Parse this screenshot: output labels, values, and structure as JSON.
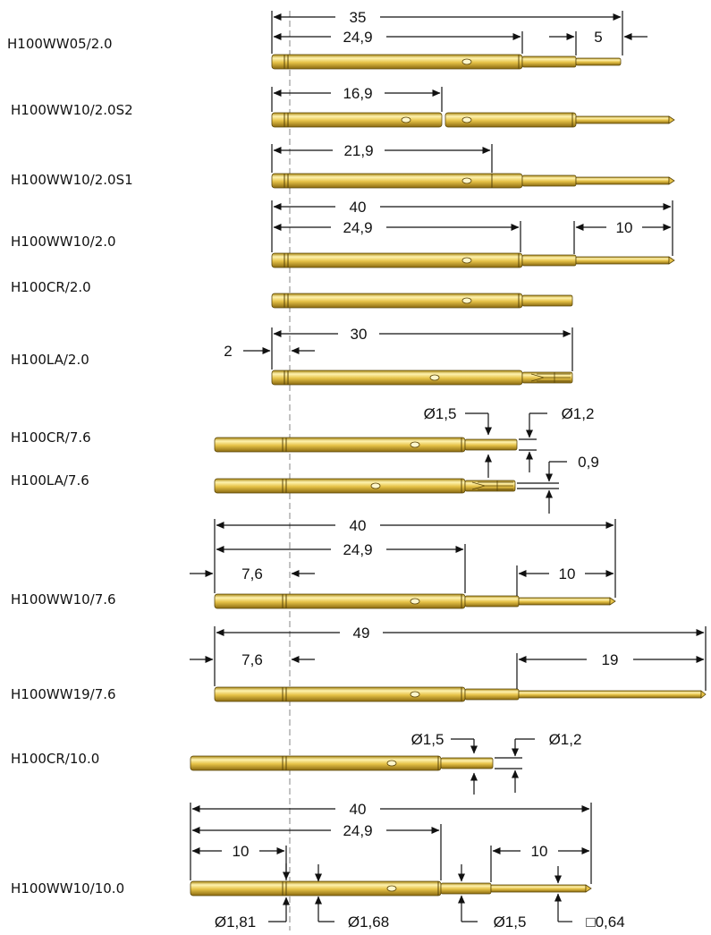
{
  "labels": {
    "ww05_20": "H100WW05/2.0",
    "ww10_20s2": "H100WW10/2.0S2",
    "ww10_20s1": "H100WW10/2.0S1",
    "ww10_20": "H100WW10/2.0",
    "cr_20": "H100CR/2.0",
    "la_20": "H100LA/2.0",
    "cr_76": "H100CR/7.6",
    "la_76": "H100LA/7.6",
    "ww10_76": "H100WW10/7.6",
    "ww19_76": "H100WW19/7.6",
    "cr_100": "H100CR/10.0",
    "ww10_100": "H100WW10/10.0"
  },
  "dims": {
    "d35": "35",
    "d249a": "24,9",
    "d5": "5",
    "d169": "16,9",
    "d219": "21,9",
    "d40a": "40",
    "d249b": "24,9",
    "d10a": "10",
    "d2": "2",
    "d30": "30",
    "phi15a": "Ø1,5",
    "phi12a": "Ø1,2",
    "d09": "0,9",
    "d40b": "40",
    "d249c": "24,9",
    "d76a": "7,6",
    "d10b": "10",
    "d49": "49",
    "d76b": "7,6",
    "d19": "19",
    "phi15b": "Ø1,5",
    "phi12b": "Ø1,2",
    "d40c": "40",
    "d249d": "24,9",
    "d10c": "10",
    "d10d": "10",
    "phi181": "Ø1,81",
    "phi168": "Ø1,68",
    "phi15c": "Ø1,5",
    "sq064": "□0,64"
  },
  "colors": {
    "gold_light": "#fff0a6",
    "gold_mid": "#e3bd3c",
    "gold_dark": "#8a6a10",
    "outline": "#5a4608"
  }
}
